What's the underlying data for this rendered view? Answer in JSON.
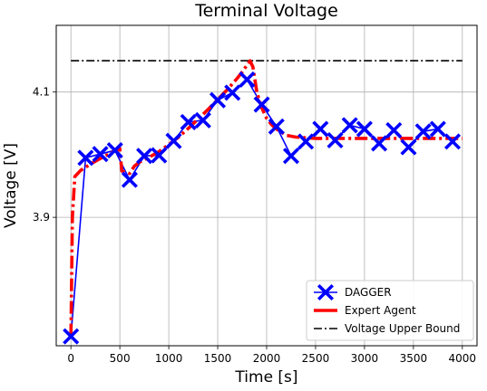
{
  "chart_data": {
    "type": "line",
    "title": "Terminal Voltage",
    "xlabel": "Time [s]",
    "ylabel": "Voltage [V]",
    "xlim": [
      -150,
      4150
    ],
    "ylim": [
      3.695,
      4.2065
    ],
    "xticks": [
      0,
      500,
      1000,
      1500,
      2000,
      2500,
      3000,
      3500,
      4000
    ],
    "yticks": [
      3.9,
      4.1
    ],
    "ytick_labels": [
      "3.9",
      "4.1"
    ],
    "grid": true,
    "legend": "lower-right",
    "series": [
      {
        "name": "DAGGER",
        "style": "line-with-x-markers",
        "color": "#0000ff",
        "x": [
          0,
          150,
          300,
          450,
          600,
          750,
          900,
          1050,
          1200,
          1350,
          1500,
          1650,
          1800,
          1950,
          2100,
          2250,
          2400,
          2550,
          2700,
          2850,
          3000,
          3150,
          3300,
          3450,
          3600,
          3750,
          3900
        ],
        "y": [
          3.71,
          3.995,
          4.001,
          4.007,
          3.96,
          3.998,
          3.999,
          4.022,
          4.052,
          4.055,
          4.087,
          4.099,
          4.12,
          4.08,
          4.045,
          3.998,
          4.021,
          4.041,
          4.023,
          4.047,
          4.041,
          4.018,
          4.039,
          4.012,
          4.037,
          4.041,
          4.021
        ]
      },
      {
        "name": "Expert Agent",
        "style": "dashdot-thick",
        "color": "#ff0000",
        "x": [
          0,
          15,
          40,
          100,
          200,
          300,
          400,
          500,
          520,
          600,
          650,
          700,
          800,
          900,
          1000,
          1100,
          1200,
          1300,
          1400,
          1500,
          1600,
          1700,
          1750,
          1800,
          1830,
          1860,
          1900,
          1950,
          2000,
          2050,
          2100,
          2200,
          2300,
          2500,
          2700,
          3000,
          3300,
          3600,
          4000
        ],
        "y": [
          3.71,
          3.9,
          3.965,
          3.975,
          3.985,
          3.994,
          4.002,
          4.01,
          3.974,
          3.97,
          3.982,
          3.988,
          3.996,
          4.005,
          4.016,
          4.028,
          4.042,
          4.057,
          4.072,
          4.088,
          4.104,
          4.122,
          4.132,
          4.143,
          4.15,
          4.14,
          4.1,
          4.075,
          4.058,
          4.048,
          4.041,
          4.031,
          4.028,
          4.026,
          4.026,
          4.026,
          4.026,
          4.026,
          4.026
        ]
      },
      {
        "name": "Voltage Upper Bound",
        "style": "dashdot-thin",
        "color": "#000000",
        "x": [
          0,
          4000
        ],
        "y": [
          4.15,
          4.15
        ]
      }
    ]
  }
}
